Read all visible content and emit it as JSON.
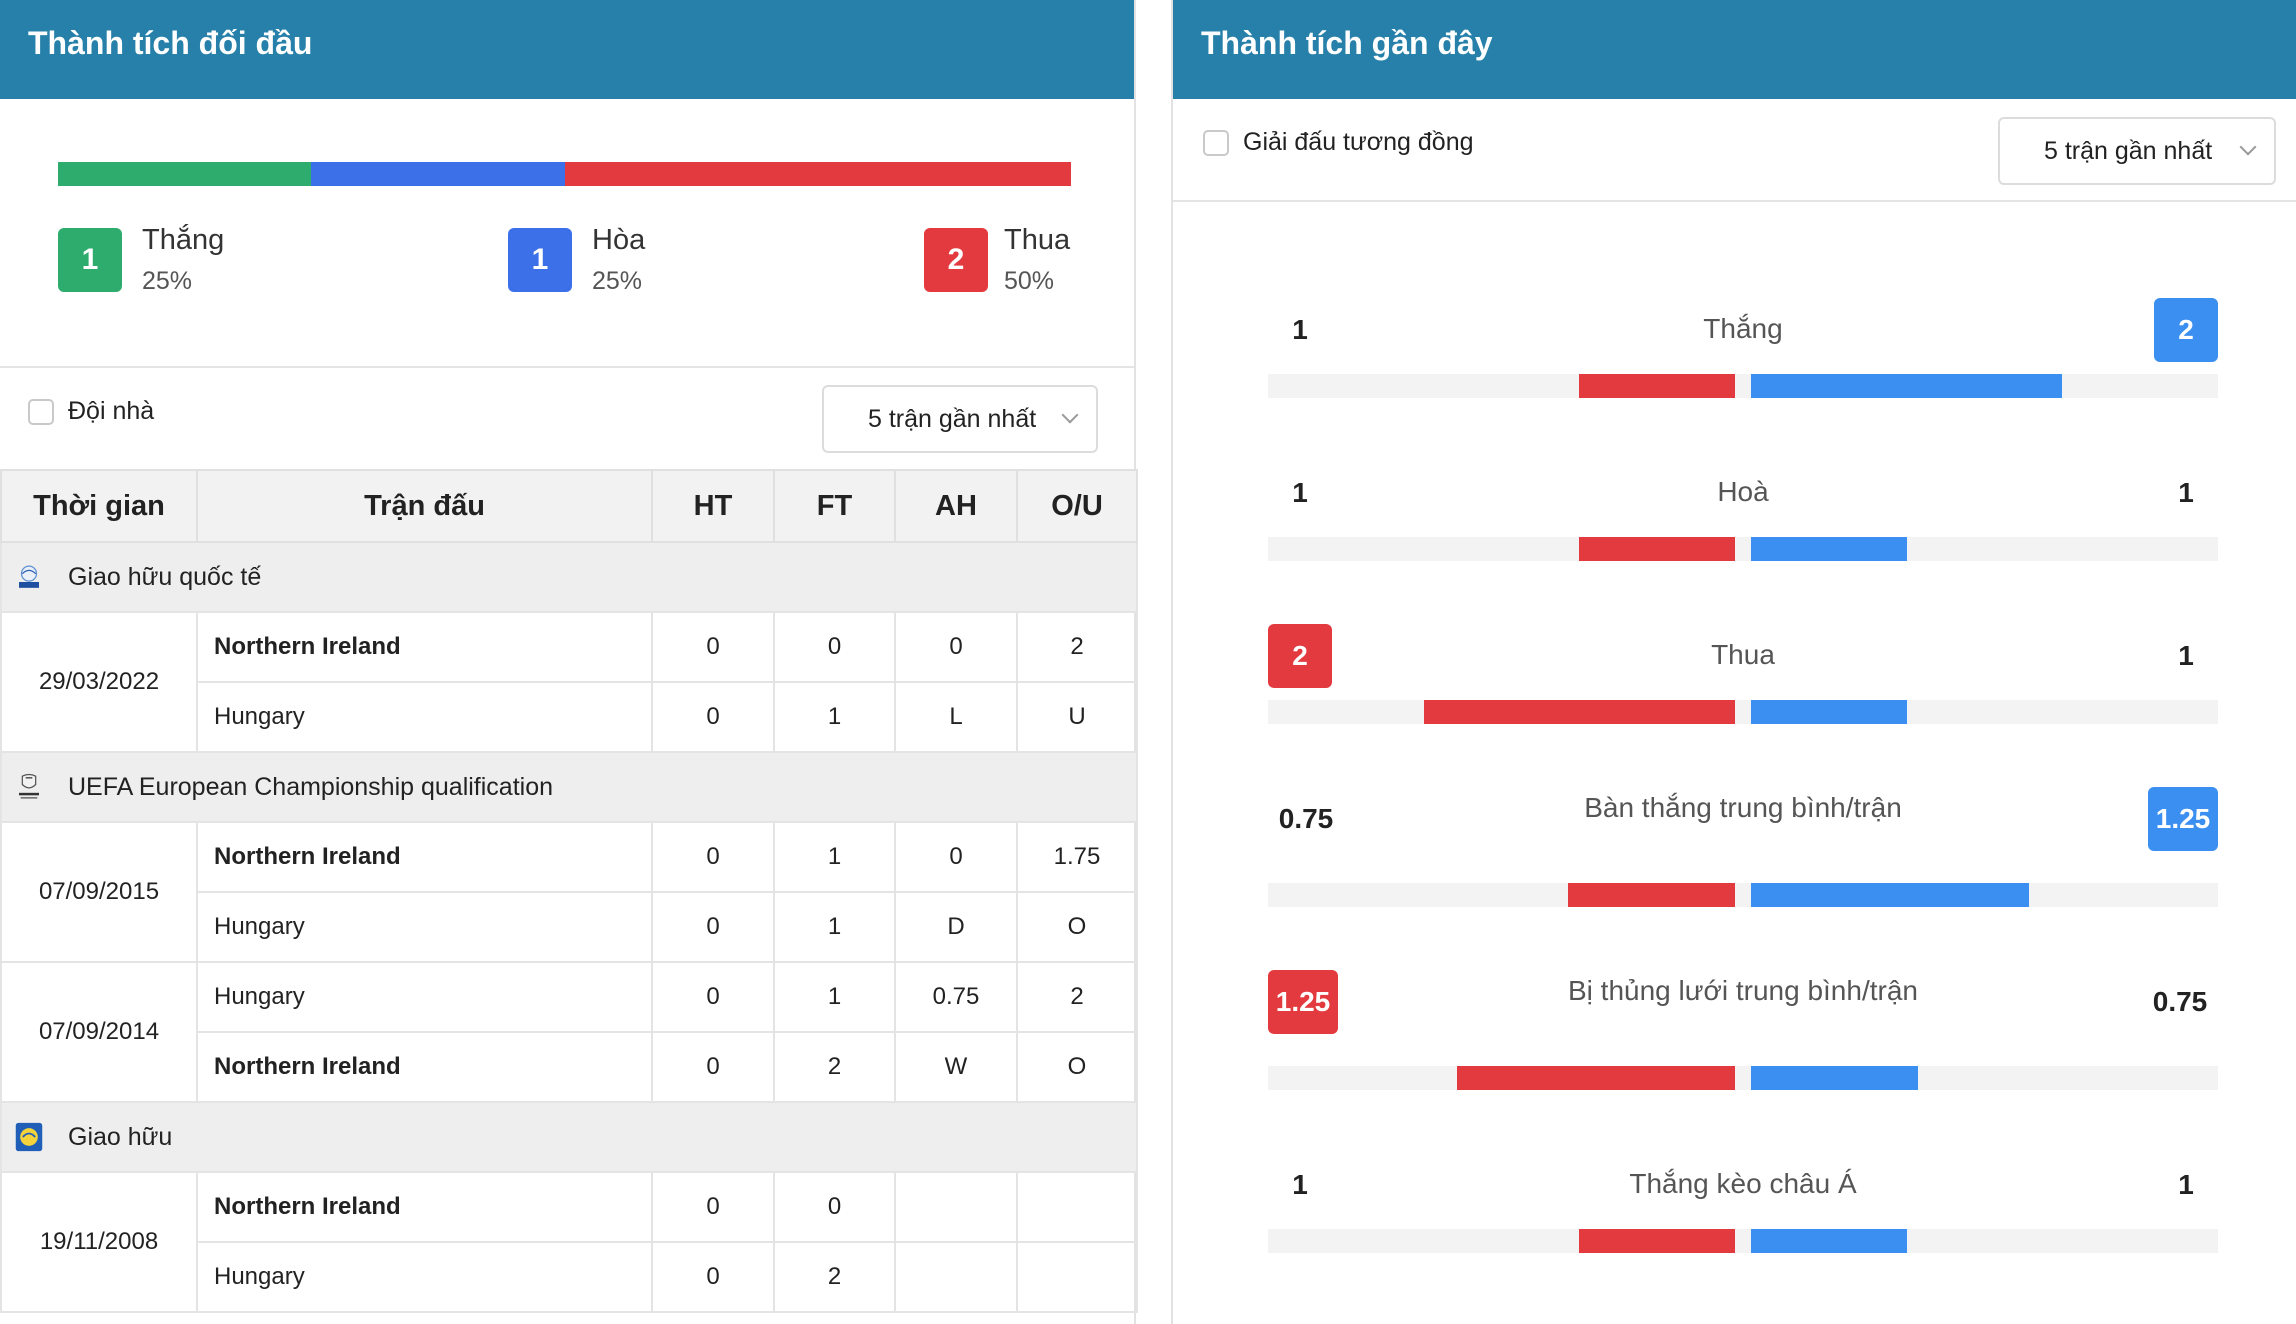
{
  "left": {
    "title": "Thành tích đối đầu",
    "summary": {
      "win": {
        "count": "1",
        "label": "Thắng",
        "pct": "25%",
        "share": 0.25,
        "color": "#2eac6d"
      },
      "draw": {
        "count": "1",
        "label": "Hòa",
        "pct": "25%",
        "share": 0.25,
        "color": "#3b70e8"
      },
      "loss": {
        "count": "2",
        "label": "Thua",
        "pct": "50%",
        "share": 0.5,
        "color": "#e23a3e"
      }
    },
    "home_filter_label": "Đội nhà",
    "select_label": "5 trận gần nhất",
    "columns": {
      "time": "Thời gian",
      "match": "Trận đấu",
      "ht": "HT",
      "ft": "FT",
      "ah": "AH",
      "ou": "O/U"
    },
    "leagues": [
      {
        "name": "Giao hữu quốc tế",
        "icon": "fifa-logo-icon"
      },
      {
        "name": "UEFA European Championship qualification",
        "icon": "euro-qualification-logo-icon"
      },
      {
        "name": "Giao hữu",
        "icon": "friendly-logo-icon"
      }
    ],
    "matches": [
      {
        "date": "29/03/2022",
        "row1": {
          "team": "Northern Ireland",
          "ht": "0",
          "ft": "0",
          "ah": "0",
          "ou": "2"
        },
        "row2": {
          "team": "Hungary",
          "ht": "0",
          "ft": "1",
          "ah": "L",
          "ou": "U"
        }
      },
      {
        "date": "07/09/2015",
        "row1": {
          "team": "Northern Ireland",
          "ht": "0",
          "ft": "1",
          "ah": "0",
          "ou": "1.75"
        },
        "row2": {
          "team": "Hungary",
          "ht": "0",
          "ft": "1",
          "ah": "D",
          "ou": "O"
        }
      },
      {
        "date": "07/09/2014",
        "row1": {
          "team": "Hungary",
          "ht": "0",
          "ft": "1",
          "ah": "0.75",
          "ou": "2"
        },
        "row2": {
          "team": "Northern Ireland",
          "ht": "0",
          "ft": "2",
          "ah": "W",
          "ou": "O"
        }
      },
      {
        "date": "19/11/2008",
        "row1": {
          "team": "Northern Ireland",
          "ht": "0",
          "ft": "0",
          "ah": "",
          "ou": ""
        },
        "row2": {
          "team": "Hungary",
          "ht": "0",
          "ft": "2",
          "ah": "",
          "ou": ""
        }
      }
    ]
  },
  "right": {
    "title": "Thành tích gần đây",
    "similar_filter_label": "Giải đấu tương đồng",
    "select_label": "5 trận gần nhất",
    "stats": [
      {
        "label": "Thắng",
        "left": "1",
        "right": "2",
        "left_value": 1,
        "right_value": 2,
        "scale_max": 3,
        "highlight": "right"
      },
      {
        "label": "Hoà",
        "left": "1",
        "right": "1",
        "left_value": 1,
        "right_value": 1,
        "scale_max": 3,
        "highlight": "none"
      },
      {
        "label": "Thua",
        "left": "2",
        "right": "1",
        "left_value": 2,
        "right_value": 1,
        "scale_max": 3,
        "highlight": "left"
      },
      {
        "label": "Bàn thắng trung bình/trận",
        "left": "0.75",
        "right": "1.25",
        "left_value": 0.75,
        "right_value": 1.25,
        "scale_max": 2.1,
        "highlight": "right"
      },
      {
        "label": "Bị thủng lưới trung bình/trận",
        "left": "1.25",
        "right": "0.75",
        "left_value": 1.25,
        "right_value": 0.75,
        "scale_max": 2.1,
        "highlight": "left"
      },
      {
        "label": "Thắng kèo châu Á",
        "left": "1",
        "right": "1",
        "left_value": 1,
        "right_value": 1,
        "scale_max": 3,
        "highlight": "none"
      }
    ]
  }
}
